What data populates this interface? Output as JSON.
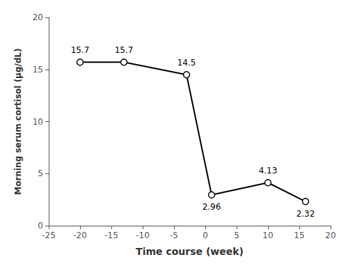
{
  "chart_data": {
    "type": "line",
    "xlabel": "Time course (week)",
    "ylabel": "Morning serum cortisol (μg/dL)",
    "x": [
      -20,
      -13,
      -3,
      1,
      10,
      16
    ],
    "values": [
      15.7,
      15.7,
      14.5,
      2.96,
      4.13,
      2.32
    ],
    "xlim": [
      -25,
      20
    ],
    "ylim": [
      0,
      20
    ],
    "xticks": [
      -25,
      -20,
      -15,
      -10,
      -5,
      0,
      5,
      10,
      15,
      20
    ],
    "yticks": [
      0,
      5,
      10,
      15,
      20
    ],
    "color": "#000000",
    "marker": "circle",
    "grid": false,
    "data_labels": true
  }
}
